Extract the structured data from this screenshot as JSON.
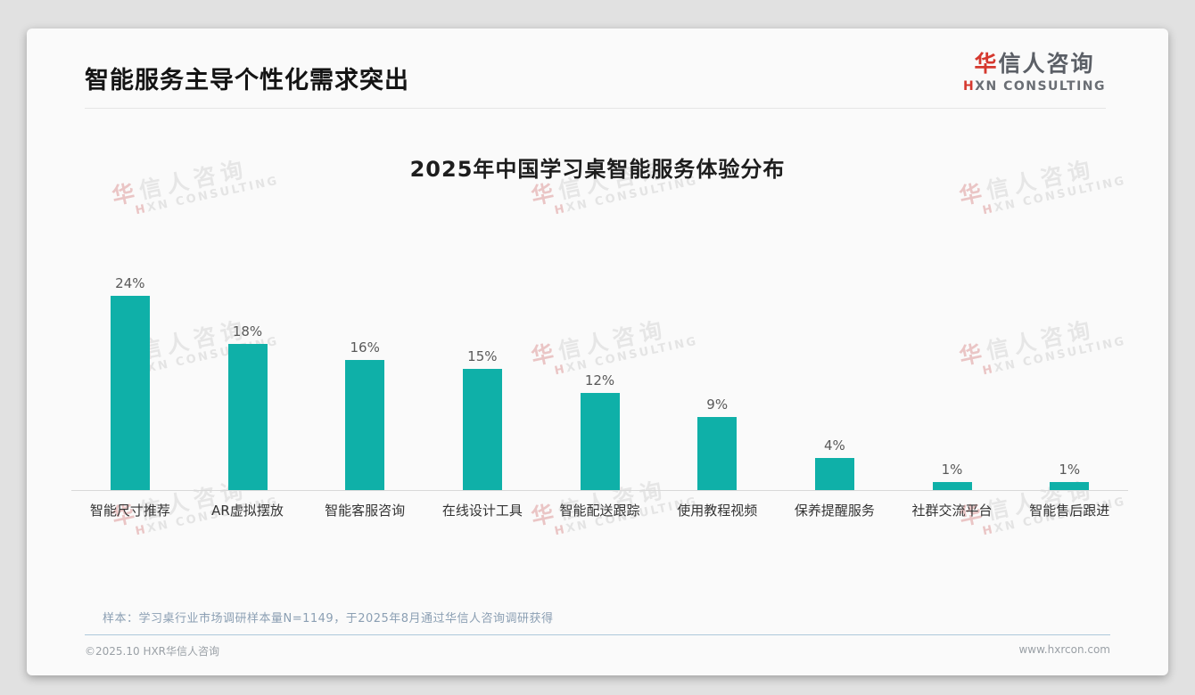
{
  "page": {
    "title": "智能服务主导个性化需求突出"
  },
  "logo": {
    "line1_accent": "华",
    "line1_rest": "信人咨询",
    "line2_accent": "H",
    "line2_rest": "XN CONSULTING"
  },
  "watermark": {
    "line1_accent": "华",
    "line1_rest": "信人咨询",
    "line2_accent": "H",
    "line2_rest": "XN CONSULTING"
  },
  "chart_data": {
    "type": "bar",
    "title": "2025年中国学习桌智能服务体验分布",
    "categories": [
      "智能尺寸推荐",
      "AR虚拟摆放",
      "智能客服咨询",
      "在线设计工具",
      "智能配送跟踪",
      "使用教程视频",
      "保养提醒服务",
      "社群交流平台",
      "智能售后跟进"
    ],
    "values": [
      24,
      18,
      16,
      15,
      12,
      9,
      4,
      1,
      1
    ],
    "value_labels": [
      "24%",
      "18%",
      "16%",
      "15%",
      "12%",
      "9%",
      "4%",
      "1%",
      "1%"
    ],
    "unit": "%",
    "bar_color": "#0fb0a8",
    "ylim": [
      0,
      26
    ],
    "grid": false,
    "legend": null,
    "xlabel": "",
    "ylabel": ""
  },
  "footnote": "样本：学习桌行业市场调研样本量N=1149，于2025年8月通过华信人咨询调研获得",
  "footer": {
    "left": "©2025.10 HXR华信人咨询",
    "right": "www.hxrcon.com"
  },
  "colors": {
    "accent_red": "#d5382e",
    "bar_teal": "#0fb0a8",
    "footnote_blue_gray": "#8b9fb3"
  }
}
